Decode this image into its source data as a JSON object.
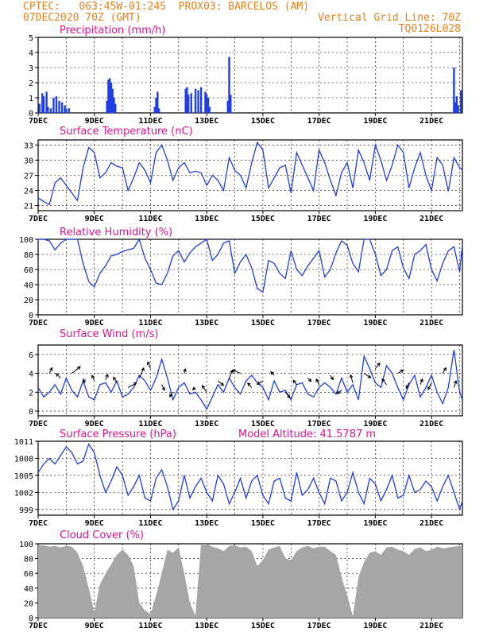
{
  "header": {
    "left_line1": "CPTEC:   063:45W-01:24S  PROX03: BARCELOS (AM)",
    "left_line2": "07DEC2020 70Z (GMT)",
    "right_line2": "Vertical Grid Line: 70Z",
    "right_line3": "TQ0126L028"
  },
  "colors": {
    "header": "#e8821e",
    "title": "#e0148c",
    "line": "#1f3fe6",
    "cloud": "#a6a6a6"
  },
  "x_axis": {
    "tick_labels": [
      "7DEC",
      "9DEC",
      "11DEC",
      "13DEC",
      "15DEC",
      "17DEC",
      "19DEC",
      "21DEC"
    ],
    "tick_days": [
      7,
      9,
      11,
      13,
      15,
      17,
      19,
      21
    ],
    "range_days": [
      7,
      22.1
    ]
  },
  "chart_data": [
    {
      "type": "bar",
      "title": "Precipitation (mm/h)",
      "ylim": [
        0,
        5
      ],
      "y_ticks": [
        0,
        1,
        2,
        3,
        4,
        5
      ],
      "x": [
        7.05,
        7.15,
        7.2,
        7.3,
        7.35,
        7.45,
        7.55,
        7.65,
        7.75,
        7.85,
        7.95,
        8.0,
        8.1,
        9.45,
        9.5,
        9.55,
        9.6,
        9.65,
        9.7,
        9.75,
        11.15,
        11.2,
        11.25,
        11.3,
        12.25,
        12.3,
        12.35,
        12.45,
        12.6,
        12.7,
        12.8,
        12.95,
        13.0,
        13.05,
        13.1,
        13.75,
        13.8,
        13.85,
        21.8,
        21.85,
        21.9,
        21.95,
        22.05
      ],
      "values": [
        0.6,
        1.3,
        1.1,
        1.4,
        0.4,
        0.3,
        1.0,
        1.1,
        0.8,
        0.7,
        0.5,
        0.3,
        0.3,
        0.8,
        2.2,
        2.3,
        2.0,
        1.6,
        1.0,
        0.6,
        0.4,
        1.0,
        1.4,
        0.3,
        1.6,
        1.7,
        1.2,
        1.3,
        1.6,
        1.5,
        1.7,
        1.4,
        1.2,
        1.0,
        0.4,
        0.8,
        3.7,
        1.2,
        3.0,
        0.7,
        1.1,
        0.5,
        1.5
      ]
    },
    {
      "type": "line",
      "title": "Surface Temperature (nC)",
      "ylim": [
        20,
        34
      ],
      "y_ticks": [
        21,
        24,
        27,
        30,
        33
      ],
      "x": [
        7.0,
        7.2,
        7.4,
        7.6,
        7.8,
        8.0,
        8.2,
        8.4,
        8.6,
        8.8,
        9.0,
        9.2,
        9.4,
        9.6,
        9.8,
        10.0,
        10.2,
        10.4,
        10.6,
        10.8,
        11.0,
        11.2,
        11.4,
        11.6,
        11.8,
        12.0,
        12.2,
        12.4,
        12.6,
        12.8,
        13.0,
        13.2,
        13.4,
        13.6,
        13.8,
        14.0,
        14.2,
        14.4,
        14.6,
        14.8,
        15.0,
        15.2,
        15.4,
        15.6,
        15.8,
        16.0,
        16.2,
        16.4,
        16.6,
        16.8,
        17.0,
        17.2,
        17.4,
        17.6,
        17.8,
        18.0,
        18.2,
        18.4,
        18.6,
        18.8,
        19.0,
        19.2,
        19.4,
        19.6,
        19.8,
        20.0,
        20.2,
        20.4,
        20.6,
        20.8,
        21.0,
        21.2,
        21.4,
        21.6,
        21.8,
        22.0,
        22.1
      ],
      "values": [
        22.5,
        21.8,
        21.2,
        25.5,
        26.5,
        25.0,
        23.5,
        22.0,
        28.5,
        32.5,
        31.5,
        26.5,
        27.5,
        29.5,
        28.8,
        28.5,
        24.0,
        26.5,
        29.5,
        28.0,
        25.5,
        31.5,
        33.0,
        30.0,
        26.0,
        28.5,
        29.5,
        27.5,
        27.8,
        27.5,
        25.0,
        27.0,
        26.0,
        24.0,
        30.5,
        28.0,
        27.0,
        24.5,
        29.5,
        33.5,
        32.0,
        24.5,
        26.5,
        28.5,
        29.0,
        23.5,
        31.5,
        29.0,
        26.5,
        24.0,
        32.0,
        29.5,
        26.0,
        23.0,
        27.5,
        29.5,
        24.5,
        32.0,
        29.5,
        26.0,
        33.0,
        30.0,
        26.0,
        29.0,
        33.0,
        31.5,
        24.5,
        28.5,
        31.5,
        27.0,
        24.0,
        30.5,
        29.0,
        23.8,
        30.5,
        28.5,
        28.0
      ]
    },
    {
      "type": "line",
      "title": "Relative Humidity (%)",
      "ylim": [
        0,
        100
      ],
      "y_ticks": [
        0,
        20,
        40,
        60,
        80,
        100
      ],
      "x": [
        7.0,
        7.2,
        7.4,
        7.6,
        7.8,
        8.0,
        8.2,
        8.4,
        8.6,
        8.8,
        9.0,
        9.2,
        9.4,
        9.6,
        9.8,
        10.0,
        10.2,
        10.4,
        10.6,
        10.8,
        11.0,
        11.2,
        11.4,
        11.6,
        11.8,
        12.0,
        12.2,
        12.4,
        12.6,
        12.8,
        13.0,
        13.2,
        13.4,
        13.6,
        13.8,
        14.0,
        14.2,
        14.4,
        14.6,
        14.8,
        15.0,
        15.2,
        15.4,
        15.6,
        15.8,
        16.0,
        16.2,
        16.4,
        16.6,
        16.8,
        17.0,
        17.2,
        17.4,
        17.6,
        17.8,
        18.0,
        18.2,
        18.4,
        18.6,
        18.8,
        19.0,
        19.2,
        19.4,
        19.6,
        19.8,
        20.0,
        20.2,
        20.4,
        20.6,
        20.8,
        21.0,
        21.2,
        21.4,
        21.6,
        21.8,
        22.0,
        22.1
      ],
      "values": [
        100,
        100,
        98,
        86,
        95,
        100,
        100,
        100,
        68,
        44,
        37,
        55,
        65,
        78,
        80,
        84,
        86,
        88,
        100,
        75,
        60,
        42,
        40,
        55,
        78,
        85,
        70,
        82,
        90,
        95,
        100,
        72,
        80,
        95,
        98,
        55,
        70,
        80,
        62,
        35,
        30,
        72,
        68,
        55,
        48,
        85,
        60,
        52,
        65,
        75,
        85,
        50,
        60,
        82,
        98,
        92,
        68,
        57,
        100,
        100,
        80,
        52,
        60,
        85,
        90,
        62,
        48,
        80,
        85,
        93,
        60,
        45,
        68,
        85,
        90,
        57,
        93
      ]
    },
    {
      "type": "line",
      "title": "Surface Wind (m/s)",
      "ylim": [
        -0.5,
        7
      ],
      "y_ticks": [
        0,
        2,
        4,
        6
      ],
      "x": [
        7.0,
        7.2,
        7.4,
        7.6,
        7.8,
        8.0,
        8.2,
        8.4,
        8.6,
        8.8,
        9.0,
        9.2,
        9.4,
        9.6,
        9.8,
        10.0,
        10.2,
        10.4,
        10.6,
        10.8,
        11.0,
        11.2,
        11.4,
        11.6,
        11.8,
        12.0,
        12.2,
        12.4,
        12.6,
        12.8,
        13.0,
        13.2,
        13.4,
        13.6,
        13.8,
        14.0,
        14.2,
        14.4,
        14.6,
        14.8,
        15.0,
        15.2,
        15.4,
        15.6,
        15.8,
        16.0,
        16.2,
        16.4,
        16.6,
        16.8,
        17.0,
        17.2,
        17.4,
        17.6,
        17.8,
        18.0,
        18.2,
        18.4,
        18.6,
        18.8,
        19.0,
        19.2,
        19.4,
        19.6,
        19.8,
        20.0,
        20.2,
        20.4,
        20.6,
        20.8,
        21.0,
        21.2,
        21.4,
        21.6,
        21.8,
        22.0,
        22.1
      ],
      "values": [
        2.5,
        1.5,
        2.0,
        2.8,
        1.8,
        3.5,
        2.2,
        1.5,
        3.2,
        1.5,
        1.2,
        2.8,
        3.0,
        2.0,
        3.2,
        1.5,
        1.8,
        2.5,
        3.8,
        3.2,
        2.2,
        3.5,
        5.5,
        3.5,
        1.2,
        2.5,
        3.0,
        1.8,
        2.0,
        1.2,
        0.2,
        1.5,
        2.8,
        2.0,
        3.5,
        2.5,
        1.8,
        3.2,
        3.8,
        3.0,
        2.5,
        1.2,
        3.2,
        2.0,
        2.2,
        1.2,
        2.8,
        3.0,
        1.8,
        1.5,
        2.5,
        3.0,
        2.5,
        1.8,
        3.5,
        2.0,
        2.8,
        1.2,
        5.8,
        4.5,
        3.0,
        2.5,
        4.8,
        4.0,
        2.5,
        1.2,
        2.8,
        3.8,
        1.5,
        2.5,
        3.8,
        2.0,
        0.8,
        2.5,
        6.5,
        2.0,
        1.2
      ]
    },
    {
      "type": "line",
      "title": "Surface Pressure (hPa)",
      "annotation": "Model Altitude: 41.5787 m",
      "ylim": [
        998,
        1011
      ],
      "y_ticks": [
        999,
        1002,
        1005,
        1008,
        1011
      ],
      "x": [
        7.0,
        7.2,
        7.4,
        7.6,
        7.8,
        8.0,
        8.2,
        8.4,
        8.6,
        8.8,
        9.0,
        9.2,
        9.4,
        9.6,
        9.8,
        10.0,
        10.2,
        10.4,
        10.6,
        10.8,
        11.0,
        11.2,
        11.4,
        11.6,
        11.8,
        12.0,
        12.2,
        12.4,
        12.6,
        12.8,
        13.0,
        13.2,
        13.4,
        13.6,
        13.8,
        14.0,
        14.2,
        14.4,
        14.6,
        14.8,
        15.0,
        15.2,
        15.4,
        15.6,
        15.8,
        16.0,
        16.2,
        16.4,
        16.6,
        16.8,
        17.0,
        17.2,
        17.4,
        17.6,
        17.8,
        18.0,
        18.2,
        18.4,
        18.6,
        18.8,
        19.0,
        19.2,
        19.4,
        19.6,
        19.8,
        20.0,
        20.2,
        20.4,
        20.6,
        20.8,
        21.0,
        21.2,
        21.4,
        21.6,
        21.8,
        22.0,
        22.1
      ],
      "values": [
        1005.5,
        1007.0,
        1008.0,
        1007.0,
        1008.5,
        1010.0,
        1009.0,
        1007.0,
        1007.5,
        1010.5,
        1009.0,
        1005.0,
        1002.0,
        1004.0,
        1006.5,
        1005.0,
        1001.5,
        1003.0,
        1005.0,
        1001.0,
        1000.5,
        1004.5,
        1006.0,
        1003.0,
        999.0,
        1000.5,
        1005.0,
        1001.0,
        1003.0,
        1004.5,
        1002.0,
        1000.5,
        1005.0,
        1003.5,
        1000.0,
        1002.0,
        1004.5,
        1001.0,
        1004.0,
        1005.0,
        1001.5,
        1000.0,
        1004.0,
        1004.5,
        1001.0,
        1000.5,
        1005.5,
        1001.5,
        1002.5,
        1004.5,
        1002.0,
        1000.0,
        1004.5,
        1004.0,
        1000.5,
        1002.0,
        1005.5,
        1002.0,
        1000.0,
        1004.5,
        1003.5,
        1000.5,
        1002.5,
        1005.0,
        1001.0,
        1001.5,
        1005.0,
        1002.0,
        1002.5,
        1004.0,
        1003.0,
        1000.5,
        1003.0,
        1005.0,
        1002.0,
        999.0,
        1000.5
      ]
    },
    {
      "type": "area",
      "title": "Cloud Cover (%)",
      "ylim": [
        0,
        100
      ],
      "y_ticks": [
        0,
        20,
        40,
        60,
        80,
        100
      ],
      "x": [
        7.0,
        7.2,
        7.4,
        7.6,
        7.8,
        8.0,
        8.2,
        8.4,
        8.6,
        8.8,
        9.0,
        9.2,
        9.4,
        9.6,
        9.8,
        10.0,
        10.2,
        10.4,
        10.6,
        10.8,
        11.0,
        11.2,
        11.4,
        11.6,
        11.8,
        12.0,
        12.2,
        12.4,
        12.6,
        12.8,
        13.0,
        13.2,
        13.4,
        13.6,
        13.8,
        14.0,
        14.2,
        14.4,
        14.6,
        14.8,
        15.0,
        15.2,
        15.4,
        15.6,
        15.8,
        16.0,
        16.2,
        16.4,
        16.6,
        16.8,
        17.0,
        17.2,
        17.4,
        17.6,
        17.8,
        18.0,
        18.2,
        18.4,
        18.6,
        18.8,
        19.0,
        19.2,
        19.4,
        19.6,
        19.8,
        20.0,
        20.2,
        20.4,
        20.6,
        20.8,
        21.0,
        21.2,
        21.4,
        21.6,
        21.8,
        22.0,
        22.1
      ],
      "values": [
        98,
        98,
        96,
        97,
        95,
        97,
        96,
        88,
        70,
        40,
        8,
        45,
        60,
        72,
        85,
        92,
        85,
        70,
        20,
        10,
        5,
        30,
        60,
        92,
        88,
        95,
        60,
        20,
        3,
        100,
        100,
        96,
        94,
        90,
        97,
        98,
        95,
        96,
        90,
        70,
        78,
        92,
        95,
        97,
        80,
        78,
        90,
        95,
        97,
        94,
        96,
        96,
        90,
        85,
        55,
        30,
        2,
        55,
        75,
        88,
        90,
        85,
        95,
        96,
        92,
        90,
        85,
        93,
        95,
        90,
        92,
        96,
        94,
        95,
        96,
        97,
        97
      ]
    },
    {
      "type": "scatter",
      "title": "Surface Wind vectors",
      "x": [
        7.4,
        7.8,
        8.2,
        8.6,
        9.0,
        9.4,
        9.8,
        10.2,
        10.6,
        11.0,
        11.4,
        11.8,
        12.2,
        12.6,
        13.0,
        13.4,
        13.8,
        14.2,
        14.6,
        15.0,
        15.4,
        15.8,
        16.2,
        16.6,
        17.0,
        17.4,
        17.8,
        18.2,
        18.6,
        19.0,
        19.4,
        19.8,
        20.2,
        20.6,
        21.0,
        21.4,
        21.8
      ],
      "u": [
        0.5,
        -0.8,
        1.5,
        0.3,
        -0.4,
        0.4,
        -0.6,
        1.5,
        0.8,
        -0.5,
        0.5,
        -0.6,
        0.2,
        -0.5,
        -0.8,
        1.0,
        0.6,
        -1.4,
        -0.7,
        -1.0,
        -0.6,
        0.8,
        -0.6,
        0.6,
        -0.5,
        0.5,
        -0.8,
        -0.4,
        1.2,
        0.8,
        -0.8,
        1.0,
        -0.5,
        0.4,
        -0.6,
        0.6,
        0.4
      ],
      "v": [
        1.0,
        0.8,
        1.2,
        -0.8,
        1.0,
        1.0,
        1.0,
        0.8,
        1.8,
        1.2,
        -1.0,
        -0.8,
        0.8,
        -0.4,
        1.2,
        -0.8,
        1.4,
        0.6,
        0.8,
        -0.6,
        0.6,
        -1.0,
        0.8,
        -0.6,
        1.0,
        -0.8,
        -0.6,
        1.4,
        -0.8,
        1.0,
        1.0,
        0.6,
        -1.0,
        1.0,
        -1.2,
        1.0,
        1.2
      ],
      "anchor_values": [
        4.0,
        3.5,
        4.0,
        3.5,
        3.2,
        3.3,
        3.0,
        2.5,
        3.5,
        4.5,
        2.8,
        2.0,
        4.0,
        2.5,
        2.0,
        3.2,
        3.5,
        4.0,
        2.5,
        3.2,
        3.8,
        2.0,
        2.8,
        3.5,
        2.8,
        3.8,
        2.2,
        3.0,
        4.0,
        4.5,
        2.8,
        4.0,
        3.0,
        2.8,
        3.0,
        4.0,
        2.5
      ]
    }
  ]
}
